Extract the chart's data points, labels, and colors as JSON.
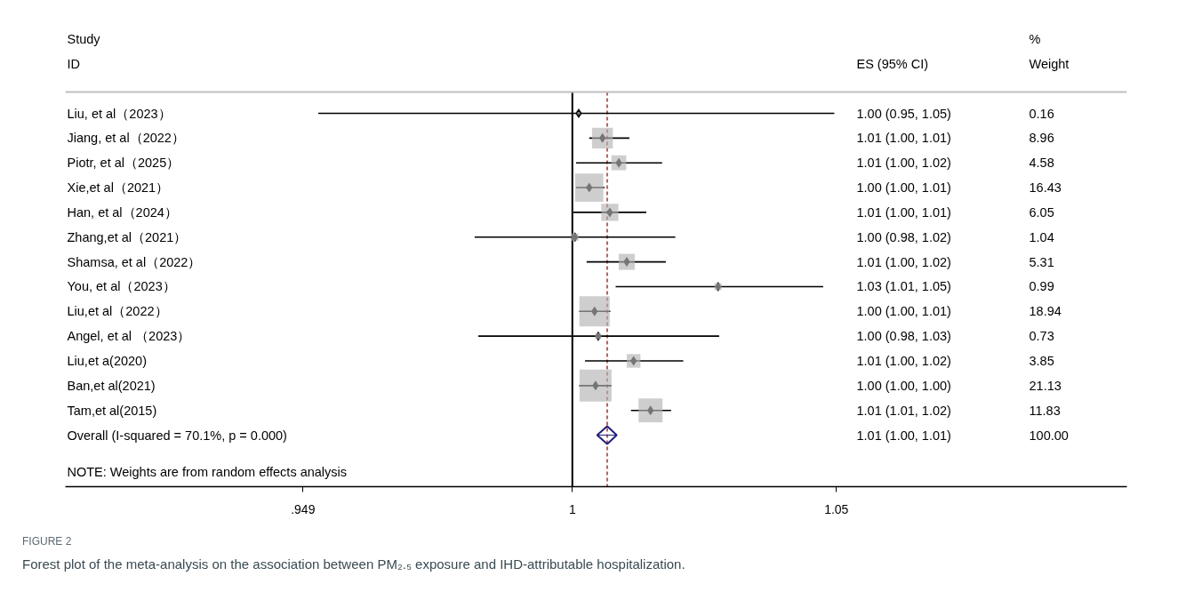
{
  "chart_data": {
    "type": "scatter",
    "orientation": "horizontal",
    "categories": [
      "Liu, et al（2023）",
      "Jiang,   et al（2022）",
      "Piotr,   et al（2025）",
      "Xie,et al（2021）",
      "Han,   et al（2024）",
      "Zhang,et al（2021）",
      "Shamsa,   et al（2022）",
      "You,   et al（2023）",
      "Liu,et al（2022）",
      "Angel,   et al  （2023）",
      "Liu,et a(2020)",
      "Ban,et al(2021)",
      "Tam,et al(2015)",
      "Overall  (I-squared = 70.1%, p = 0.000)"
    ],
    "xlim": [
      0.904,
      1.105
    ],
    "xticks": [
      {
        "value": 0.949,
        "label": ".949"
      },
      1,
      1.05
    ],
    "tick_labels": "x",
    "grid": false,
    "ref_lines": [
      {
        "axis": "x",
        "value": 1,
        "color": "#000000",
        "line_style": "solid"
      },
      {
        "axis": "x",
        "value": 1.0066,
        "color": "#a0302f",
        "line_style": "dashed"
      }
    ],
    "series": [
      {
        "type": "bubble",
        "marker": "square",
        "color": "#b3b3b3",
        "values": [
          1.0012,
          1.0057,
          1.0088,
          1.0032,
          1.0071,
          1.0005,
          1.0103,
          1.0276,
          1.0042,
          1.0049,
          1.0116,
          1.0044,
          1.0148,
          null
        ],
        "errors": [
          [
            0.9519,
            1.0496
          ],
          [
            1.0032,
            1.0108
          ],
          [
            1.0007,
            1.017
          ],
          [
            1.0007,
            1.0061
          ],
          [
            1.0002,
            1.014
          ],
          [
            0.9815,
            1.0195
          ],
          [
            1.0027,
            1.0177
          ],
          [
            1.0082,
            1.0475
          ],
          [
            1.0013,
            1.0072
          ],
          [
            0.9822,
            1.0278
          ],
          [
            1.0024,
            1.021
          ],
          [
            1.0013,
            1.0074
          ],
          [
            1.0111,
            1.0187
          ],
          null
        ],
        "sizes": [
          0.0076,
          0.424,
          0.217,
          0.778,
          0.286,
          0.049,
          0.251,
          0.047,
          0.896,
          0.035,
          0.182,
          1,
          0.56,
          null
        ]
      },
      {
        "type": "scatter",
        "marker": "diamond",
        "color": "#1f1f7a",
        "values": [
          null,
          null,
          null,
          null,
          null,
          null,
          null,
          null,
          null,
          null,
          null,
          null,
          null,
          1.0066
        ],
        "errors": [
          null,
          null,
          null,
          null,
          null,
          null,
          null,
          null,
          null,
          null,
          null,
          null,
          null,
          [
            1.0047,
            1.0084
          ]
        ]
      }
    ],
    "annotations": [
      "Study",
      "ID",
      "ES (95% CI)",
      "%",
      "Weight",
      "NOTE: Weights are from random effects analysis",
      "FIGURE 2",
      "Forest plot of the meta-analysis on the association between PM₂.₅ exposure and IHD-attributable hospitalization.",
      "1.00 (0.95, 1.05)",
      "1.01 (1.00, 1.01)",
      "1.01 (1.00, 1.02)",
      "1.00 (1.00, 1.01)",
      "1.01 (1.00, 1.01)",
      "1.00 (0.98, 1.02)",
      "1.01 (1.00, 1.02)",
      "1.03 (1.01, 1.05)",
      "1.00 (1.00, 1.01)",
      "1.00 (0.98, 1.03)",
      "1.01 (1.00, 1.02)",
      "1.00 (1.00, 1.00)",
      "1.01 (1.01, 1.02)",
      "1.01 (1.00, 1.01)",
      "0.16",
      "8.96",
      "4.58",
      "16.43",
      "6.05",
      "1.04",
      "5.31",
      "0.99",
      "18.94",
      "0.73",
      "3.85",
      "21.13",
      "11.83",
      "100.00"
    ]
  }
}
